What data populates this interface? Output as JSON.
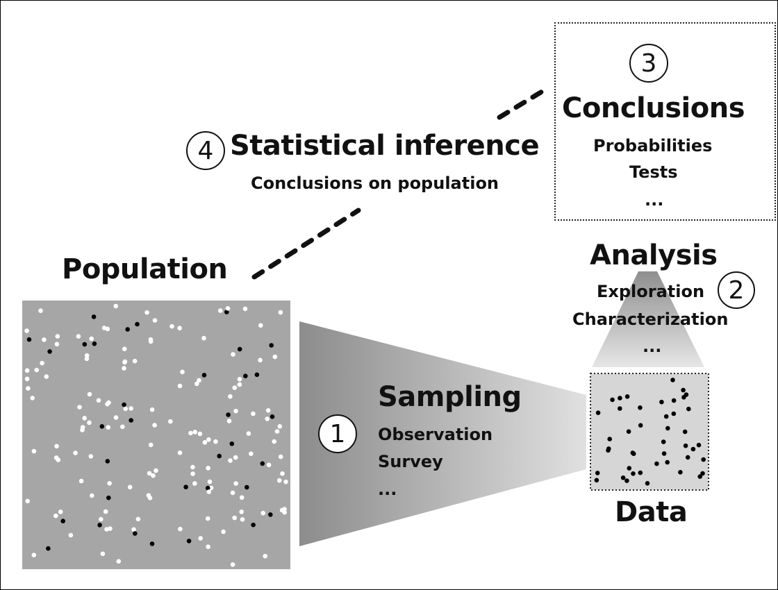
{
  "population": {
    "label": "Population"
  },
  "sampling": {
    "number": "1",
    "title": "Sampling",
    "items": [
      "Observation",
      "Survey",
      "..."
    ]
  },
  "data": {
    "label": "Data"
  },
  "analysis": {
    "number": "2",
    "title": "Analysis",
    "items": [
      "Exploration",
      "Characterization",
      "..."
    ]
  },
  "conclusions": {
    "number": "3",
    "title": "Conclusions",
    "items": [
      "Probabilities",
      "Tests",
      "..."
    ]
  },
  "inference": {
    "number": "4",
    "title": "Statistical inference",
    "subtitle": "Conclusions on population"
  },
  "colors": {
    "population_fill": "#a6a6a6",
    "data_fill": "#d6d6d6",
    "dot_dark": "#000000",
    "dot_light": "#ffffff",
    "funnel_dark": "#8c8c8c",
    "funnel_light": "#e0e0e0"
  }
}
